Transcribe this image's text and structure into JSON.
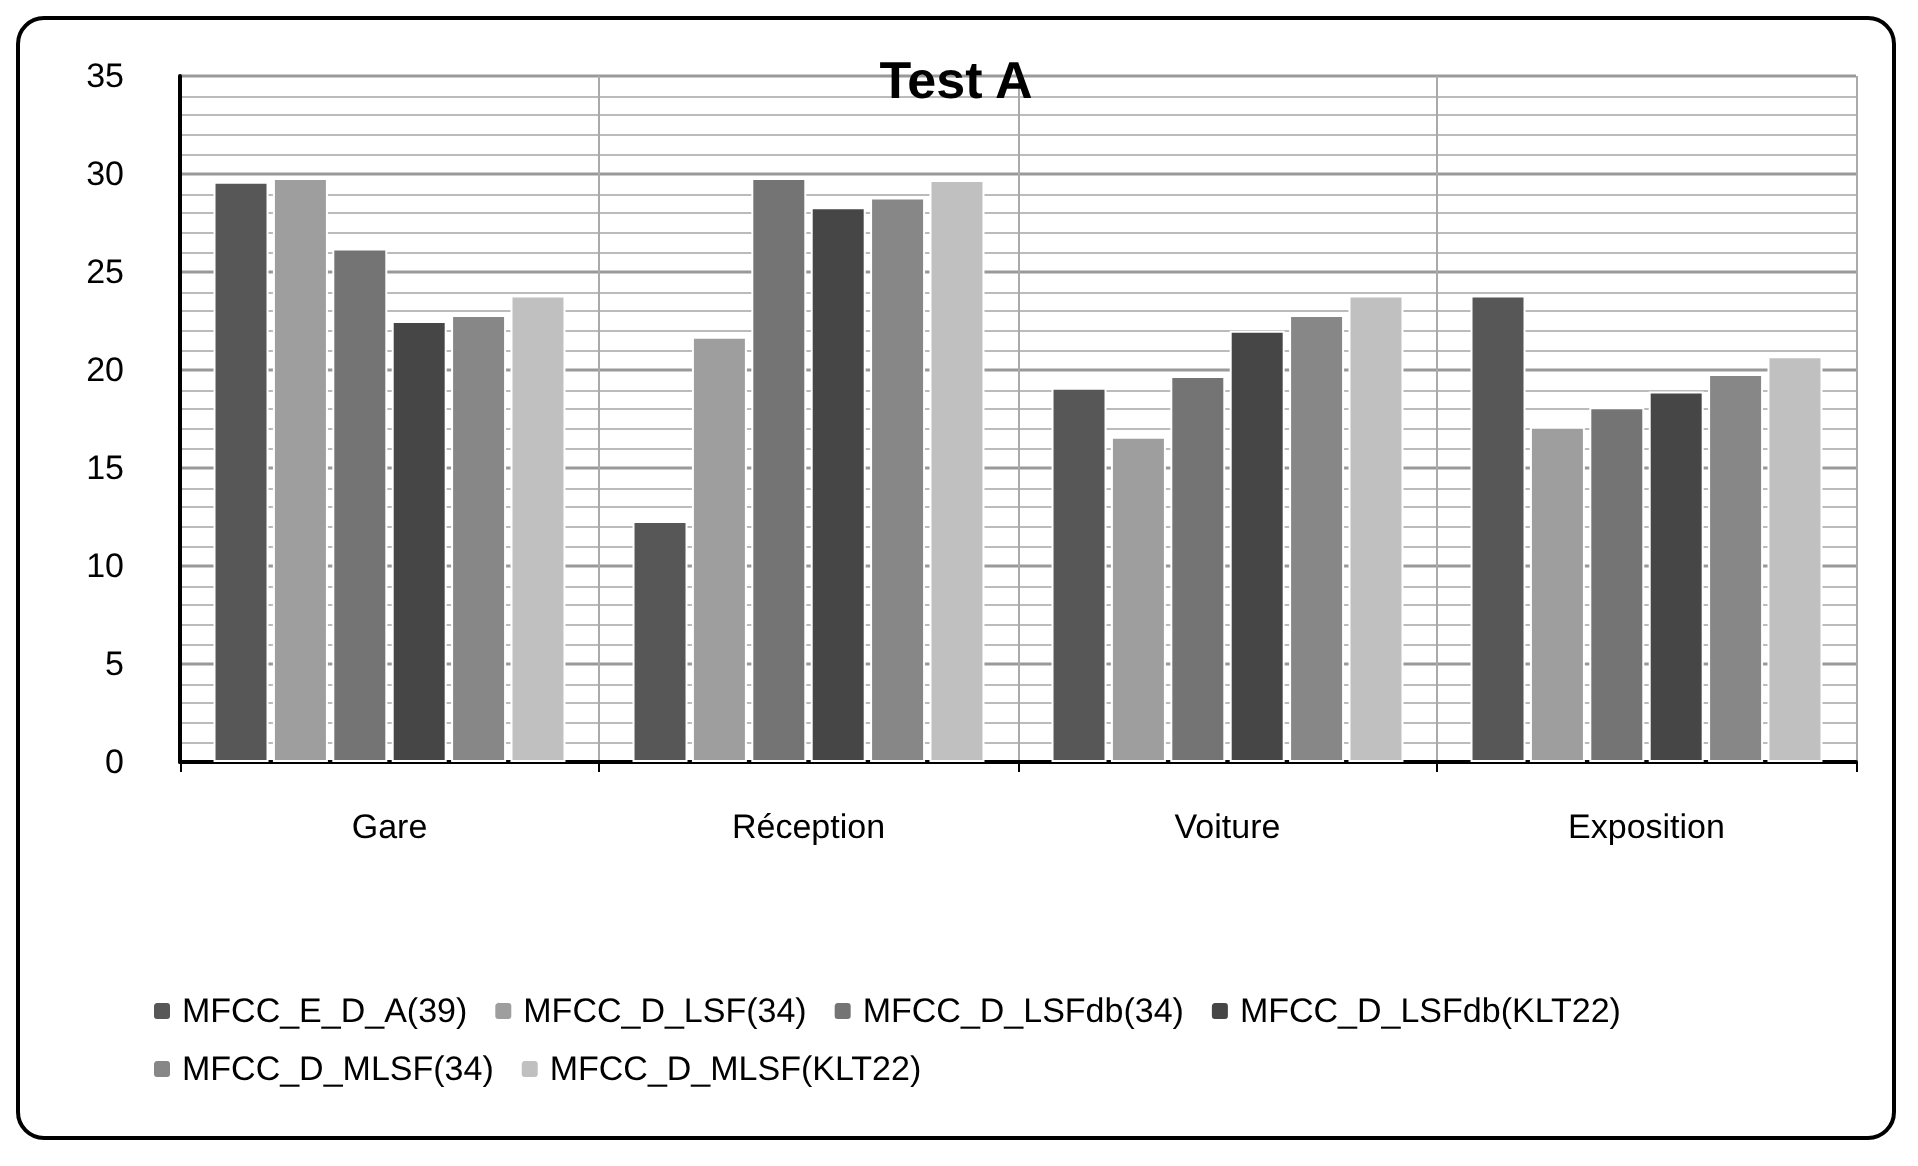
{
  "chart_data": {
    "type": "bar",
    "title": "Test A",
    "categories": [
      "Gare",
      "Réception",
      "Voiture",
      "Exposition"
    ],
    "series": [
      {
        "name": "MFCC_E_D_A(39)",
        "color": "#575757",
        "values": [
          29.6,
          12.3,
          19.1,
          23.8
        ]
      },
      {
        "name": "MFCC_D_LSF(34)",
        "color": "#9e9e9e",
        "values": [
          29.8,
          21.7,
          16.6,
          17.1
        ]
      },
      {
        "name": "MFCC_D_LSFdb(34)",
        "color": "#747474",
        "values": [
          26.2,
          29.8,
          19.7,
          18.1
        ]
      },
      {
        "name": "MFCC_D_LSFdb(KLT22)",
        "color": "#464646",
        "values": [
          22.5,
          28.3,
          22.0,
          18.9
        ]
      },
      {
        "name": "MFCC_D_MLSF(34)",
        "color": "#878787",
        "values": [
          22.8,
          28.8,
          22.8,
          19.8
        ]
      },
      {
        "name": "MFCC_D_MLSF(KLT22)",
        "color": "#c0c0c0",
        "values": [
          23.8,
          29.7,
          23.8,
          20.7
        ]
      }
    ],
    "ylim": [
      0,
      35
    ],
    "yticks": [
      0,
      5,
      10,
      15,
      20,
      25,
      30,
      35
    ],
    "grid": true,
    "legend": "bottom"
  }
}
